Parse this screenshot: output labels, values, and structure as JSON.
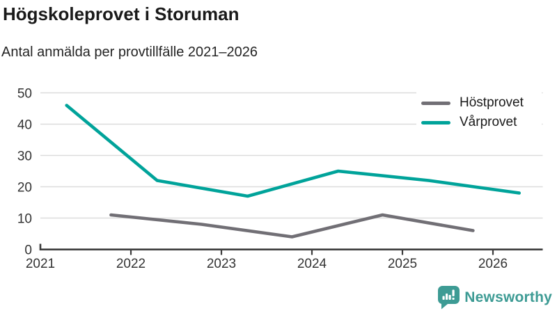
{
  "chart_data": {
    "type": "line",
    "title": "Högskoleprovet i Storuman",
    "subtitle": "Antal anmälda per provtillfälle 2021–2026",
    "xlabel": "",
    "ylabel": "",
    "xlim": [
      2021,
      2026.55
    ],
    "ylim": [
      0,
      50
    ],
    "x_ticks": [
      2021,
      2022,
      2023,
      2024,
      2025,
      2026
    ],
    "y_ticks": [
      0,
      10,
      20,
      30,
      40,
      50
    ],
    "grid": "horizontal",
    "legend_position": "top-right",
    "series": [
      {
        "name": "Höstprovet",
        "color_key": "hostprovet",
        "x": [
          2021.78,
          2022.78,
          2023.78,
          2024.78,
          2025.78
        ],
        "values": [
          11,
          8,
          4,
          11,
          6
        ]
      },
      {
        "name": "Vårprovet",
        "color_key": "varprovet",
        "x": [
          2021.29,
          2022.29,
          2023.29,
          2024.29,
          2025.29,
          2026.29
        ],
        "values": [
          46,
          22,
          17,
          25,
          22,
          18
        ]
      }
    ]
  },
  "colors": {
    "hostprovet": "#716f75",
    "varprovet": "#00a39a",
    "grid": "#dcdcdc",
    "axis": "#3c3c3c",
    "tick_text": "#333333",
    "title_text": "#1a1a1a",
    "logo": "#3d9b94"
  },
  "logo": {
    "text": "Newsworthy"
  }
}
